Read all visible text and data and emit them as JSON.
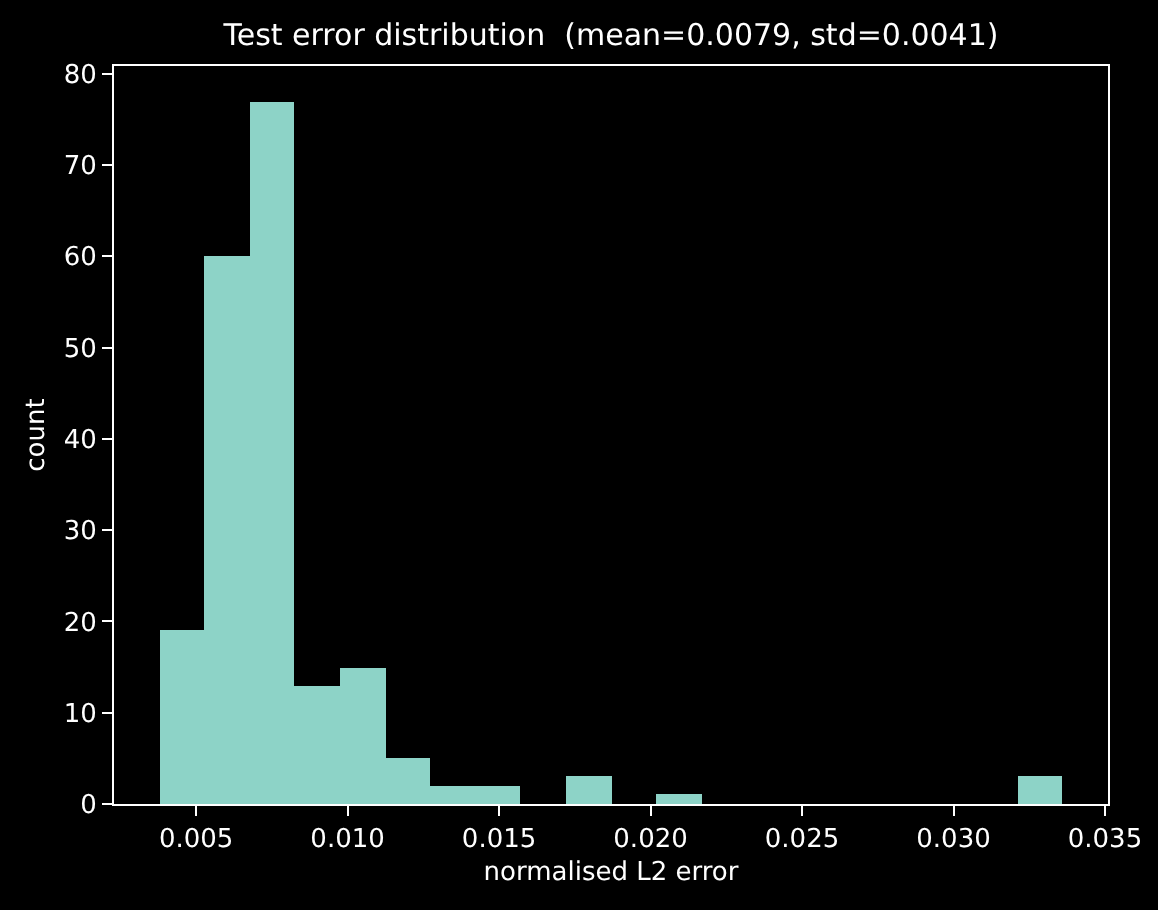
{
  "chart_data": {
    "type": "histogram",
    "title": "Test error distribution  (mean=0.0079, std=0.0041)",
    "xlabel": "normalised L2 error",
    "ylabel": "count",
    "bins": [
      0.00378,
      0.00527,
      0.00676,
      0.00825,
      0.00975,
      0.01124,
      0.01273,
      0.01422,
      0.01571,
      0.0172,
      0.0187,
      0.02019,
      0.02168,
      0.02317,
      0.02466,
      0.02615,
      0.02764,
      0.02914,
      0.03063,
      0.03212,
      0.03361
    ],
    "values": [
      19,
      60,
      77,
      13,
      15,
      5,
      2,
      2,
      0,
      3,
      0,
      1,
      0,
      0,
      0,
      0,
      0,
      0,
      0,
      3
    ],
    "color": "#8dd3c7",
    "xlim": [
      0.00229,
      0.0351
    ],
    "xticks": [
      0.005,
      {
        "value": 0.01,
        "label": "0.010"
      },
      0.015,
      {
        "value": 0.02,
        "label": "0.020"
      },
      0.025,
      {
        "value": 0.03,
        "label": "0.030"
      },
      0.035
    ],
    "ylim": [
      0,
      80.85
    ],
    "yticks": [
      0,
      10,
      20,
      30,
      40,
      50,
      60,
      70,
      80
    ]
  }
}
